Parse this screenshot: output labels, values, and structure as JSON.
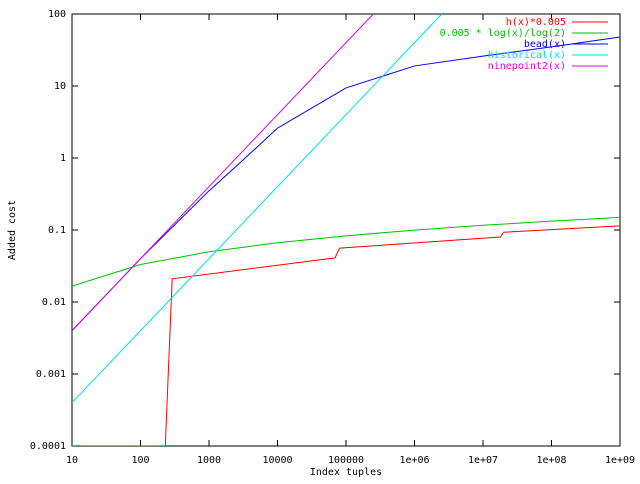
{
  "chart_data": {
    "type": "line",
    "x_label": "Index tuples",
    "y_label": "Added cost",
    "xscale": "log",
    "yscale": "log",
    "legend": "top-right",
    "xlim": [
      10,
      1000000000
    ],
    "ylim": [
      0.0001,
      100
    ],
    "xticks": [
      10,
      100,
      1000,
      10000,
      100000,
      {
        "value": 1000000,
        "label": "1e+06"
      },
      {
        "value": 10000000,
        "label": "1e+07"
      },
      {
        "value": 100000000,
        "label": "1e+08"
      },
      {
        "value": 1000000000,
        "label": "1e+09"
      }
    ],
    "yticks": [
      0.0001,
      0.001,
      0.01,
      0.1,
      1,
      10,
      100
    ],
    "series": [
      {
        "name": "h(x)*0.005",
        "color": "#ff0000",
        "x": [
          10,
          230,
          290,
          69000,
          81000,
          18000000,
          20000000,
          1000000000
        ],
        "values": [
          0.0001,
          0.0001,
          0.021,
          0.041,
          0.056,
          0.08,
          0.093,
          0.114
        ]
      },
      {
        "name": "0.005 * log(x)/log(2)",
        "color": "#00c000",
        "x": [
          10,
          100,
          1000,
          10000,
          100000,
          1000000,
          10000000,
          100000000,
          1000000000
        ],
        "values": [
          0.0166,
          0.0332,
          0.0498,
          0.0664,
          0.083,
          0.0997,
          0.1163,
          0.1329,
          0.1495
        ]
      },
      {
        "name": "bead(x)",
        "color": "#0000ff",
        "x": [
          10,
          100,
          1000,
          3000,
          10000,
          100000,
          1000000,
          10000000,
          100000000,
          1000000000
        ],
        "values": [
          0.004,
          0.04,
          0.35,
          0.9,
          2.6,
          9.4,
          19,
          26,
          35,
          48
        ]
      },
      {
        "name": "historical(x)",
        "color": "#00e0e0",
        "x": [
          10,
          2500000
        ],
        "values": [
          0.0004,
          100
        ]
      },
      {
        "name": "ninepoint2(x)",
        "color": "#e000e0",
        "x": [
          10,
          250000
        ],
        "values": [
          0.004,
          100
        ]
      }
    ]
  }
}
